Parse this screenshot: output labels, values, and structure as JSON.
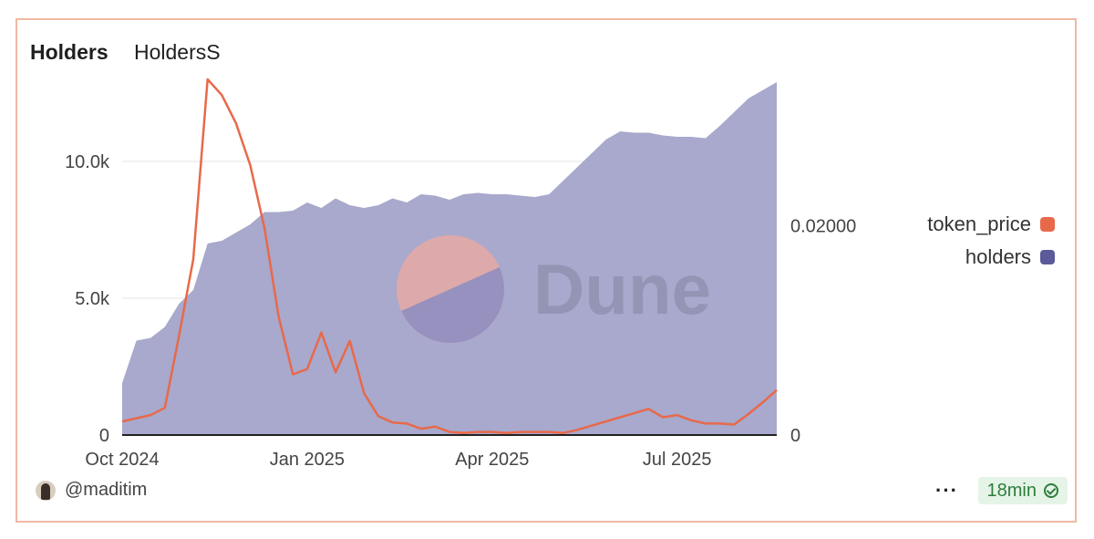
{
  "tabs": [
    {
      "label": "Holders",
      "active": true
    },
    {
      "label": "HoldersS",
      "active": false
    }
  ],
  "footer": {
    "author": "@maditim",
    "more_label": "···",
    "refresh_label": "18min"
  },
  "watermark": "Dune",
  "colors": {
    "token_price": "#e8694a",
    "holders_fill": "#a8a9cd",
    "holders_legend": "#5b5a9a",
    "border": "#f0b9a3"
  },
  "chart_data": {
    "type": "area",
    "x_tick_labels": [
      "Oct 2024",
      "Jan 2025",
      "Apr 2025",
      "Jul 2025"
    ],
    "x_tick_positions": [
      0,
      13,
      26,
      39
    ],
    "x_range": [
      0,
      46
    ],
    "left_axis": {
      "ticks": [
        0,
        5000,
        10000
      ],
      "tick_labels": [
        "0",
        "5.0k",
        "10.0k"
      ],
      "range": [
        0,
        13000
      ]
    },
    "right_axis": {
      "ticks": [
        0,
        0.02
      ],
      "tick_labels": [
        "0",
        "0.02000"
      ],
      "range": [
        0,
        0.034
      ]
    },
    "series": [
      {
        "name": "holders",
        "axis": "left",
        "style": "area",
        "x": [
          0,
          1,
          2,
          3,
          4,
          5,
          6,
          7,
          8,
          9,
          10,
          11,
          12,
          13,
          14,
          15,
          16,
          17,
          18,
          19,
          20,
          21,
          22,
          23,
          24,
          25,
          26,
          27,
          28,
          29,
          30,
          31,
          32,
          33,
          34,
          35,
          36,
          37,
          38,
          39,
          40,
          41,
          42,
          43,
          44,
          45,
          46
        ],
        "values": [
          1900,
          3450,
          3550,
          3950,
          4800,
          5300,
          7000,
          7100,
          7400,
          7700,
          8150,
          8150,
          8200,
          8500,
          8300,
          8650,
          8400,
          8300,
          8400,
          8650,
          8500,
          8800,
          8750,
          8600,
          8800,
          8850,
          8800,
          8800,
          8750,
          8700,
          8800,
          9300,
          9800,
          10300,
          10800,
          11100,
          11050,
          11050,
          10950,
          10900,
          10900,
          10850,
          11300,
          11800,
          12300,
          12600,
          12900
        ]
      },
      {
        "name": "token_price",
        "axis": "right",
        "style": "line",
        "x": [
          0,
          1,
          2,
          3,
          4,
          5,
          6,
          7,
          8,
          9,
          10,
          11,
          12,
          13,
          14,
          15,
          16,
          17,
          18,
          19,
          20,
          21,
          22,
          23,
          24,
          25,
          26,
          27,
          28,
          29,
          30,
          31,
          32,
          33,
          34,
          35,
          36,
          37,
          38,
          39,
          40,
          41,
          42,
          43,
          44,
          45,
          46
        ],
        "values": [
          0.0013,
          0.0016,
          0.0019,
          0.0026,
          0.0095,
          0.0168,
          0.034,
          0.0325,
          0.0298,
          0.0258,
          0.0198,
          0.0113,
          0.0058,
          0.0063,
          0.0098,
          0.006,
          0.009,
          0.004,
          0.0018,
          0.0012,
          0.0011,
          0.0006,
          0.0008,
          0.0003,
          0.0002,
          0.0003,
          0.0003,
          0.0002,
          0.0003,
          0.0003,
          0.0003,
          0.0002,
          0.0005,
          0.0009,
          0.0013,
          0.0017,
          0.0021,
          0.0025,
          0.0017,
          0.0019,
          0.0014,
          0.0011,
          0.0011,
          0.001,
          0.002,
          0.0031,
          0.0043
        ]
      }
    ],
    "legend": [
      "token_price",
      "holders"
    ],
    "legend_position": "right",
    "grid": true
  }
}
